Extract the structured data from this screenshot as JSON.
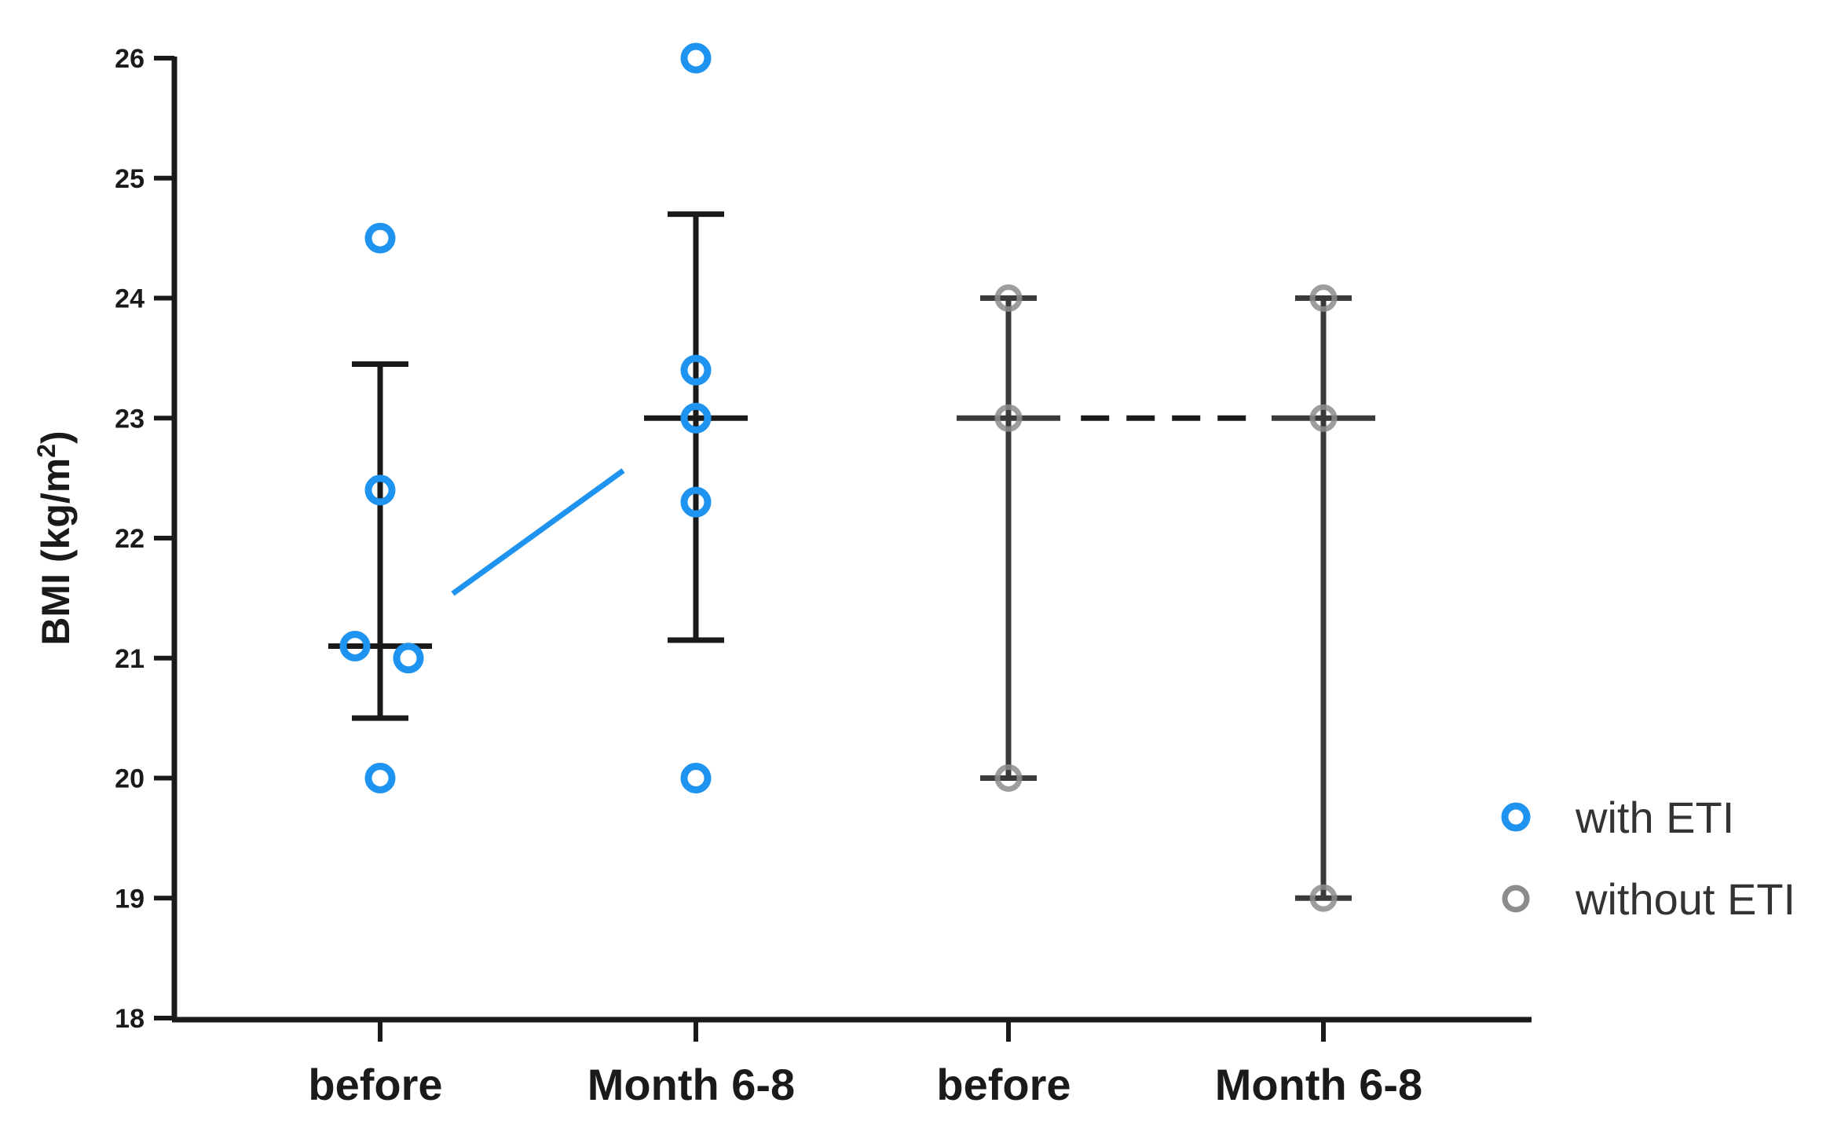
{
  "chart_data": {
    "type": "scatter",
    "ylabel_main": "BMI (kg/m",
    "ylabel_sup": "2",
    "ylabel_close": ")",
    "ylim": [
      18,
      26
    ],
    "yticks": [
      "18",
      "19",
      "20",
      "21",
      "22",
      "23",
      "24",
      "25",
      "26"
    ],
    "categories": [
      "before",
      "Month 6-8",
      "before",
      "Month 6-8"
    ],
    "series": [
      {
        "name": "with ETI",
        "color": "#1f93f0",
        "groups": [
          {
            "category_index": 0,
            "points": [
              24.5,
              22.4,
              21.1,
              21.0,
              20.0
            ],
            "median": 21.1,
            "error_high": 23.45,
            "error_low": 20.5
          },
          {
            "category_index": 1,
            "points": [
              26.0,
              23.4,
              23.0,
              22.3,
              20.0
            ],
            "median": 23.0,
            "error_high": 24.7,
            "error_low": 21.15
          }
        ],
        "connector": "solid"
      },
      {
        "name": "without ETI",
        "color": "#8c8c8c",
        "groups": [
          {
            "category_index": 2,
            "points": [
              24.0,
              23.0,
              20.0
            ],
            "median": 23.0,
            "error_high": 24.0,
            "error_low": 20.0
          },
          {
            "category_index": 3,
            "points": [
              24.0,
              23.0,
              19.0
            ],
            "median": 23.0,
            "error_high": 24.0,
            "error_low": 19.0
          }
        ],
        "connector": "dashed"
      }
    ],
    "legend": [
      "with ETI",
      "without ETI"
    ],
    "legend_position": "right",
    "grid": false,
    "axis_color": "#1a1a1a"
  }
}
